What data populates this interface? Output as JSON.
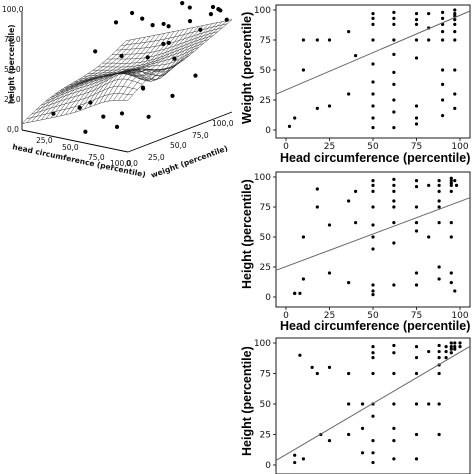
{
  "chart_data": [
    {
      "type": "surface3d",
      "xlabel": "head circumference (percentile)",
      "ylabel": "weight (percentile)",
      "zlabel": "height (percentile)",
      "x_ticks": [
        "25,0",
        "50,0",
        "75,0",
        "100,0"
      ],
      "y_ticks": [
        "25,0",
        "50,0",
        "75,0",
        "100,0"
      ],
      "z_ticks": [
        "0,0",
        "25,0",
        "50,0",
        "75,0",
        "100,0"
      ],
      "origin_label": "0,0",
      "xlim": [
        0,
        100
      ],
      "ylim": [
        0,
        100
      ],
      "zlim": [
        0,
        100
      ],
      "scatter": {
        "x": [
          5,
          15,
          20,
          30,
          45,
          50,
          55,
          60,
          70,
          75,
          80,
          85,
          90,
          95,
          97,
          10,
          25,
          40,
          50,
          62,
          75,
          88,
          95,
          60,
          35,
          45,
          65,
          80,
          20,
          70,
          90,
          50,
          30,
          85,
          60
        ],
        "y": [
          90,
          80,
          70,
          95,
          60,
          85,
          98,
          75,
          90,
          95,
          80,
          97,
          99,
          92,
          98,
          20,
          30,
          25,
          10,
          15,
          40,
          55,
          70,
          35,
          60,
          75,
          50,
          65,
          50,
          20,
          30,
          90,
          85,
          95,
          80
        ],
        "z": [
          90,
          95,
          80,
          70,
          98,
          60,
          95,
          85,
          97,
          75,
          90,
          98,
          95,
          100,
          88,
          10,
          15,
          25,
          5,
          20,
          40,
          30,
          45,
          15,
          55,
          50,
          35,
          60,
          60,
          10,
          20,
          75,
          80,
          92,
          65
        ]
      }
    },
    {
      "type": "scatter",
      "xlabel": "Head circumference (percentile)",
      "ylabel": "Weight (percentile)",
      "xlim": [
        0,
        100
      ],
      "ylim": [
        0,
        100
      ],
      "xticks": [
        "0",
        "25",
        "50",
        "75",
        "100"
      ],
      "yticks": [
        "0",
        "25",
        "50",
        "75",
        "100"
      ],
      "fit": {
        "intercept": 33,
        "slope": 0.63
      },
      "x": [
        2,
        5,
        10,
        10,
        18,
        18,
        25,
        25,
        36,
        36,
        50,
        50,
        50,
        50,
        50,
        50,
        50,
        50,
        50,
        50,
        62,
        62,
        62,
        62,
        62,
        62,
        62,
        62,
        62,
        75,
        75,
        75,
        75,
        75,
        75,
        75,
        90,
        90,
        90,
        90,
        90,
        90,
        90,
        90,
        90,
        97,
        97,
        97,
        97,
        97,
        97,
        97,
        97,
        97,
        97,
        62,
        75,
        82,
        82,
        82,
        40
      ],
      "y": [
        3,
        10,
        75,
        50,
        75,
        18,
        75,
        20,
        82,
        30,
        97,
        93,
        88,
        75,
        55,
        40,
        30,
        20,
        10,
        2,
        98,
        93,
        88,
        75,
        63,
        48,
        38,
        25,
        15,
        97,
        92,
        88,
        75,
        60,
        20,
        5,
        98,
        93,
        88,
        82,
        75,
        50,
        38,
        25,
        12,
        100,
        97,
        95,
        92,
        88,
        82,
        75,
        50,
        30,
        18,
        2,
        10,
        97,
        85,
        75,
        62
      ]
    },
    {
      "type": "scatter",
      "xlabel": "Head circumference (percentile)",
      "ylabel": "Height (percentile)",
      "xlim": [
        0,
        100
      ],
      "ylim": [
        0,
        100
      ],
      "xticks": [
        "0",
        "25",
        "50",
        "75",
        "100"
      ],
      "yticks": [
        "0",
        "25",
        "50",
        "75",
        "100"
      ],
      "fit": {
        "intercept": 25,
        "slope": 0.55
      },
      "x": [
        5,
        5,
        8,
        10,
        10,
        18,
        18,
        25,
        25,
        36,
        36,
        50,
        50,
        50,
        50,
        50,
        50,
        50,
        50,
        50,
        50,
        62,
        62,
        62,
        62,
        62,
        62,
        62,
        62,
        75,
        75,
        75,
        75,
        75,
        75,
        75,
        88,
        88,
        88,
        88,
        88,
        88,
        88,
        88,
        95,
        95,
        95,
        95,
        95,
        95,
        95,
        95,
        95,
        97,
        97,
        98,
        40,
        40,
        82,
        82
      ],
      "y": [
        3,
        3,
        3,
        50,
        15,
        90,
        75,
        60,
        20,
        80,
        12,
        97,
        93,
        88,
        75,
        60,
        50,
        40,
        10,
        5,
        2,
        98,
        93,
        88,
        80,
        75,
        62,
        45,
        10,
        97,
        92,
        75,
        62,
        55,
        20,
        10,
        97,
        93,
        88,
        80,
        75,
        62,
        25,
        15,
        99,
        97,
        95,
        93,
        88,
        62,
        50,
        20,
        12,
        97,
        5,
        93,
        88,
        62,
        93,
        50
      ]
    },
    {
      "type": "scatter",
      "xlabel": "",
      "ylabel": "Height (percentile)",
      "xlim": [
        0,
        100
      ],
      "ylim": [
        0,
        100
      ],
      "xticks": [],
      "yticks": [
        "0",
        "25",
        "50",
        "75",
        "100"
      ],
      "fit": {
        "intercept": 8,
        "slope": 0.85
      },
      "x": [
        5,
        5,
        8,
        10,
        15,
        18,
        20,
        25,
        25,
        36,
        36,
        36,
        50,
        50,
        50,
        50,
        50,
        50,
        50,
        50,
        50,
        62,
        62,
        62,
        62,
        62,
        62,
        62,
        75,
        75,
        75,
        75,
        75,
        75,
        88,
        88,
        88,
        88,
        88,
        88,
        88,
        92,
        92,
        92,
        95,
        95,
        95,
        95,
        97,
        97,
        97,
        100,
        100,
        44,
        44,
        44,
        82,
        82
      ],
      "y": [
        2,
        8,
        90,
        5,
        80,
        75,
        25,
        80,
        20,
        75,
        50,
        25,
        97,
        92,
        88,
        75,
        50,
        40,
        20,
        10,
        2,
        98,
        92,
        75,
        50,
        30,
        20,
        5,
        97,
        88,
        75,
        50,
        25,
        5,
        98,
        93,
        88,
        82,
        75,
        50,
        25,
        97,
        93,
        88,
        100,
        97,
        95,
        92,
        100,
        97,
        95,
        100,
        97,
        50,
        30,
        10,
        93,
        50
      ]
    }
  ]
}
